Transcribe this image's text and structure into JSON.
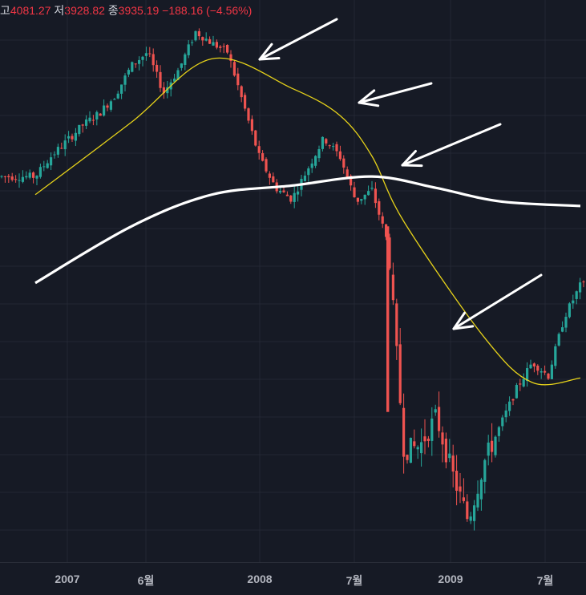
{
  "ohlc_bar": {
    "high_label": "고",
    "high": "4081.27",
    "low_label": "저",
    "low": "3928.82",
    "close_label": "종",
    "close": "3935.19",
    "change": "−188.16 (−4.56%)"
  },
  "colors": {
    "background": "#161a25",
    "grid": "#232733",
    "up": "#26a69a",
    "down": "#ef5350",
    "ma_short": "#e6d21a",
    "ma_long": "#ffffff",
    "arrows": "#ffffff"
  },
  "chart_data": {
    "type": "candlestick",
    "grid": true,
    "x_ticks": [
      "2007",
      "6월",
      "2008",
      "7월",
      "2009",
      "7월"
    ],
    "price_path": [
      [
        "2006-11",
        4240
      ],
      [
        "2006-12",
        4330
      ],
      [
        "2007-02",
        4470
      ],
      [
        "2007-03",
        4520
      ],
      [
        "2007-04",
        4600
      ],
      [
        "2007-05",
        4730
      ],
      [
        "2007-06",
        4790
      ],
      [
        "2007-07",
        4610
      ],
      [
        "2007-08",
        4720
      ],
      [
        "2007-09",
        4880
      ],
      [
        "2007-10",
        4830
      ],
      [
        "2007-11",
        4790
      ],
      [
        "2008-01",
        4320
      ],
      [
        "2008-02",
        4190
      ],
      [
        "2008-03",
        4140
      ],
      [
        "2008-05",
        4410
      ],
      [
        "2008-06",
        4330
      ],
      [
        "2008-07",
        4130
      ],
      [
        "2008-08",
        4180
      ],
      [
        "2008-09",
        3940
      ],
      [
        "2008-10",
        3030
      ],
      [
        "2008-11",
        3050
      ],
      [
        "2008-12",
        3180
      ],
      [
        "2009-01",
        2930
      ],
      [
        "2009-02",
        2720
      ],
      [
        "2009-03",
        2980
      ],
      [
        "2009-04",
        3140
      ],
      [
        "2009-05",
        3300
      ],
      [
        "2009-06",
        3420
      ],
      [
        "2009-07",
        3360
      ],
      [
        "2009-08",
        3620
      ],
      [
        "2009-09",
        3760
      ]
    ],
    "ma_short_path": [
      [
        "2006-11",
        4160
      ],
      [
        "2007-05",
        4480
      ],
      [
        "2007-10",
        4760
      ],
      [
        "2008-03",
        4630
      ],
      [
        "2008-06",
        4510
      ],
      [
        "2008-08",
        4330
      ],
      [
        "2008-10",
        4040
      ],
      [
        "2009-03",
        3530
      ],
      [
        "2009-06",
        3330
      ],
      [
        "2009-09",
        3350
      ]
    ],
    "ma_long_path": [
      [
        "2006-11",
        3770
      ],
      [
        "2007-05",
        4020
      ],
      [
        "2007-10",
        4160
      ],
      [
        "2008-03",
        4200
      ],
      [
        "2008-08",
        4240
      ],
      [
        "2008-12",
        4190
      ],
      [
        "2009-04",
        4130
      ],
      [
        "2009-09",
        4110
      ]
    ],
    "annotations": [
      {
        "type": "arrow",
        "points_to": "2007-11 peak"
      },
      {
        "type": "arrow",
        "points_to": "2008-05 rebound"
      },
      {
        "type": "arrow",
        "points_to": "2008-09 cross"
      },
      {
        "type": "arrow",
        "points_to": "2009-01 rebound"
      }
    ]
  }
}
